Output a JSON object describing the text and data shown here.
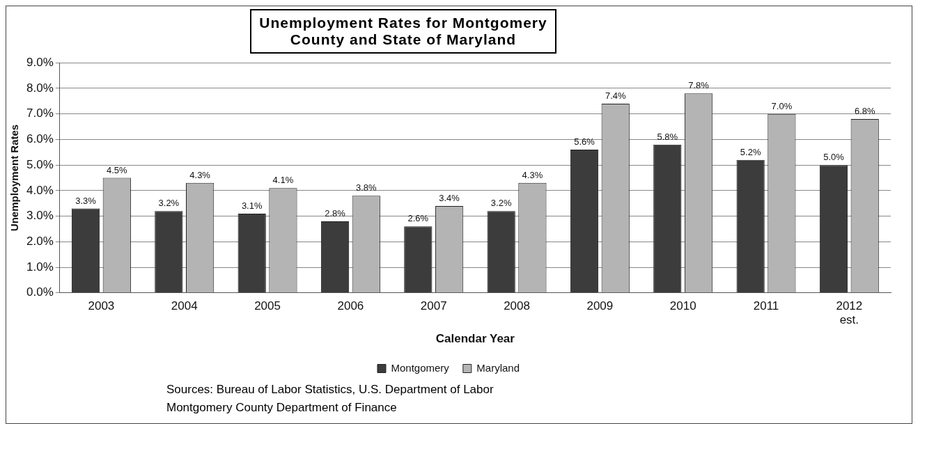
{
  "chart_data": {
    "type": "bar",
    "title": "Unemployment Rates for Montgomery County and State of Maryland",
    "xlabel": "Calendar Year",
    "ylabel": "Unemployment Rates",
    "categories": [
      "2003",
      "2004",
      "2005",
      "2006",
      "2007",
      "2008",
      "2009",
      "2010",
      "2011",
      "2012 est."
    ],
    "series": [
      {
        "name": "Montgomery",
        "color": "#3c3c3c",
        "values": [
          3.3,
          3.2,
          3.1,
          2.8,
          2.6,
          3.2,
          5.6,
          5.8,
          5.2,
          5.0
        ],
        "value_labels": [
          "3.3%",
          "3.2%",
          "3.1%",
          "2.8%",
          "2.6%",
          "3.2%",
          "5.6%",
          "5.8%",
          "5.2%",
          "5.0%"
        ]
      },
      {
        "name": "Maryland",
        "color": "#b4b4b4",
        "values": [
          4.5,
          4.3,
          4.1,
          3.8,
          3.4,
          4.3,
          7.4,
          7.8,
          7.0,
          6.8
        ],
        "value_labels": [
          "4.5%",
          "4.3%",
          "4.1%",
          "3.8%",
          "3.4%",
          "4.3%",
          "7.4%",
          "7.8%",
          "7.0%",
          "6.8%"
        ]
      }
    ],
    "ylim": [
      0,
      9
    ],
    "yticks": [
      {
        "value": 0,
        "label": "0.0%"
      },
      {
        "value": 1,
        "label": "1.0%"
      },
      {
        "value": 2,
        "label": "2.0%"
      },
      {
        "value": 3,
        "label": "3.0%"
      },
      {
        "value": 4,
        "label": "4.0%"
      },
      {
        "value": 5,
        "label": "5.0%"
      },
      {
        "value": 6,
        "label": "6.0%"
      },
      {
        "value": 7,
        "label": "7.0%"
      },
      {
        "value": 8,
        "label": "8.0%"
      },
      {
        "value": 9,
        "label": "9.0%"
      }
    ],
    "grid": "y",
    "legend": "bottom",
    "annotations": [
      "Sources: Bureau of Labor Statistics, U.S. Department of Labor\nMontgomery County Department of Finance"
    ]
  }
}
